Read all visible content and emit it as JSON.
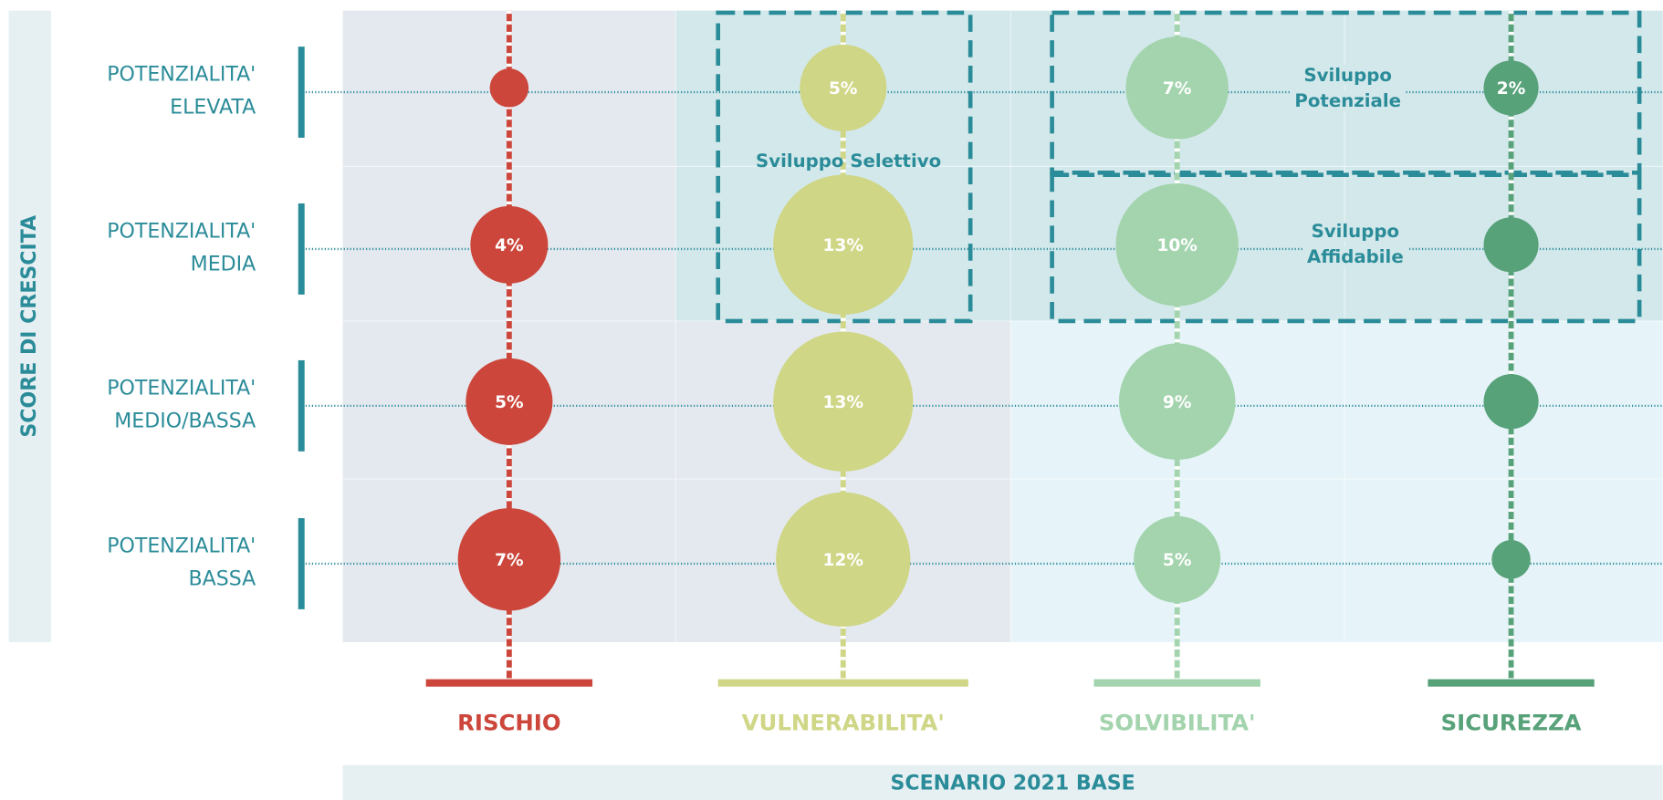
{
  "chart_data": {
    "type": "bubble_matrix",
    "ylabel": "SCORE DI CRESCITA",
    "xlabel": "SCENARIO 2021 BASE",
    "rows": [
      [
        "POTENZIALITA'",
        "ELEVATA"
      ],
      [
        "POTENZIALITA'",
        "MEDIA"
      ],
      [
        "POTENZIALITA'",
        "MEDIO/BASSA"
      ],
      [
        "POTENZIALITA'",
        "BASSA"
      ]
    ],
    "series": [
      {
        "name": "RISCHIO",
        "color": "#cc463b",
        "values": [
          1,
          4,
          5,
          7
        ],
        "value_labels": [
          null,
          "4%",
          "5%",
          "7%"
        ]
      },
      {
        "name": "VULNERABILITA'",
        "color": "#cfd686",
        "values": [
          5,
          13,
          13,
          12
        ],
        "value_labels": [
          "5%",
          "13%",
          "13%",
          "12%"
        ]
      },
      {
        "name": "SOLVIBILITA'",
        "color": "#a3d4ad",
        "values": [
          7,
          10,
          9,
          5
        ],
        "value_labels": [
          "7%",
          "10%",
          "9%",
          "5%"
        ]
      },
      {
        "name": "SICUREZZA",
        "color": "#58a27a",
        "values": [
          2,
          2,
          2,
          1
        ],
        "value_labels": [
          "2%",
          null,
          null,
          null
        ]
      }
    ],
    "annotations": [
      [
        "Sviluppo Selettivo"
      ],
      [
        "Sviluppo",
        "Potenziale"
      ],
      [
        "Sviluppo",
        "Affidabile"
      ]
    ]
  }
}
